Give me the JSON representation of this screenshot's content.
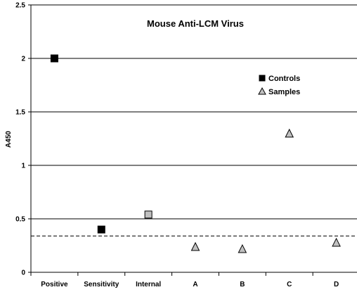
{
  "chart_data": {
    "type": "scatter",
    "title": "Mouse Anti-LCM Virus",
    "xlabel": "",
    "ylabel": "A450",
    "categories": [
      "Positive",
      "Sensitivity",
      "Internal",
      "A",
      "B",
      "C",
      "D"
    ],
    "ylim": [
      0,
      2.5
    ],
    "yticks": [
      "0",
      "0.5",
      "1",
      "1.5",
      "2",
      "2.5"
    ],
    "grid": true,
    "legend_position": "right",
    "cutoff_line": {
      "y": 0.34,
      "style": "dashed"
    },
    "series": [
      {
        "name": "Controls",
        "marker": "square",
        "points": [
          {
            "category": "Positive",
            "y": 2.0,
            "color": "#000000"
          },
          {
            "category": "Sensitivity",
            "y": 0.4,
            "color": "#000000"
          },
          {
            "category": "Internal",
            "y": 0.54,
            "color": "#c0c0c0"
          }
        ]
      },
      {
        "name": "Samples",
        "marker": "triangle",
        "points": [
          {
            "category": "A",
            "y": 0.24,
            "color": "#c0c0c0"
          },
          {
            "category": "B",
            "y": 0.22,
            "color": "#c0c0c0"
          },
          {
            "category": "C",
            "y": 1.3,
            "color": "#c0c0c0"
          },
          {
            "category": "D",
            "y": 0.28,
            "color": "#c0c0c0"
          }
        ]
      }
    ],
    "legend": [
      {
        "label": "Controls",
        "marker": "square",
        "color": "#000000"
      },
      {
        "label": "Samples",
        "marker": "triangle",
        "color": "#c0c0c0"
      }
    ]
  }
}
